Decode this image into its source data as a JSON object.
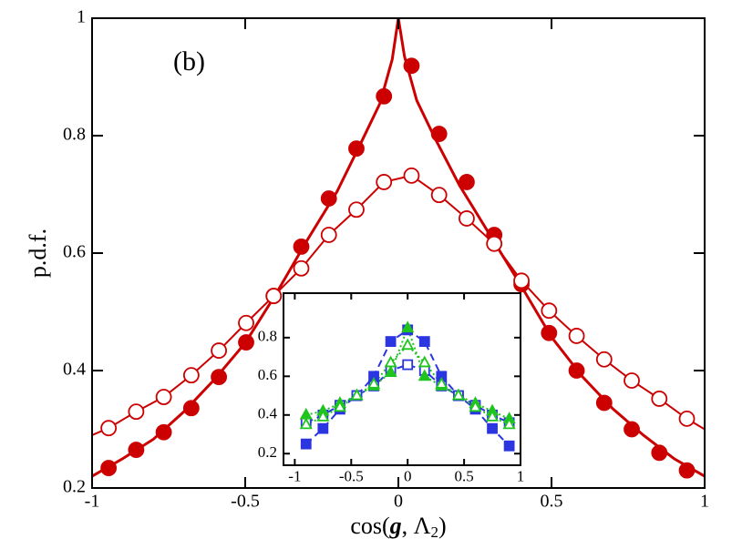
{
  "chart_data": [
    {
      "type": "line",
      "annotation": "(b)",
      "ylabel": "p.d.f.",
      "xlabel_parts": [
        "cos(",
        "g",
        ", Λ",
        "2",
        ")"
      ],
      "xlim": [
        -1,
        1
      ],
      "ylim": [
        0.2,
        1
      ],
      "xticks": [
        -1,
        -0.5,
        0,
        0.5,
        1
      ],
      "yticks": [
        0.2,
        0.4,
        0.6,
        0.8,
        1
      ],
      "series": [
        {
          "name": "filled",
          "color": "#cc0000",
          "marker": "circle",
          "filled": true,
          "line_width": 3,
          "x": [
            -0.946,
            -0.856,
            -0.766,
            -0.676,
            -0.586,
            -0.497,
            -0.407,
            -0.317,
            -0.227,
            -0.137,
            -0.047,
            0.043,
            0.133,
            0.223,
            0.313,
            0.402,
            0.492,
            0.582,
            0.672,
            0.762,
            0.852,
            0.942
          ],
          "values": [
            0.234,
            0.265,
            0.295,
            0.336,
            0.389,
            0.448,
            0.527,
            0.611,
            0.693,
            0.778,
            0.867,
            0.919,
            0.803,
            0.721,
            0.631,
            0.547,
            0.464,
            0.4,
            0.345,
            0.3,
            0.26,
            0.23
          ],
          "line_x": [
            -1,
            -0.9,
            -0.8,
            -0.7,
            -0.6,
            -0.5,
            -0.4,
            -0.3,
            -0.2,
            -0.12,
            -0.06,
            -0.02,
            0,
            0.02,
            0.06,
            0.12,
            0.2,
            0.3,
            0.4,
            0.5,
            0.6,
            0.7,
            0.8,
            0.9,
            1
          ],
          "line_values": [
            0.22,
            0.25,
            0.283,
            0.33,
            0.385,
            0.447,
            0.53,
            0.62,
            0.705,
            0.79,
            0.855,
            0.93,
            1,
            0.935,
            0.86,
            0.795,
            0.715,
            0.63,
            0.545,
            0.457,
            0.39,
            0.335,
            0.29,
            0.25,
            0.22
          ]
        },
        {
          "name": "open",
          "color": "#cc0000",
          "marker": "circle",
          "filled": false,
          "line_width": 2,
          "x": [
            -0.946,
            -0.856,
            -0.766,
            -0.676,
            -0.586,
            -0.497,
            -0.407,
            -0.317,
            -0.227,
            -0.137,
            -0.047,
            0.043,
            0.133,
            0.223,
            0.313,
            0.402,
            0.492,
            0.582,
            0.672,
            0.762,
            0.852,
            0.942
          ],
          "values": [
            0.302,
            0.33,
            0.355,
            0.392,
            0.434,
            0.481,
            0.527,
            0.574,
            0.631,
            0.674,
            0.721,
            0.732,
            0.699,
            0.659,
            0.616,
            0.553,
            0.502,
            0.459,
            0.419,
            0.383,
            0.352,
            0.318
          ],
          "line_x": [
            -1,
            -0.946,
            -0.856,
            -0.766,
            -0.676,
            -0.586,
            -0.497,
            -0.407,
            -0.317,
            -0.227,
            -0.137,
            -0.047,
            0.043,
            0.133,
            0.223,
            0.313,
            0.402,
            0.492,
            0.582,
            0.672,
            0.762,
            0.852,
            0.942,
            1
          ],
          "line_values": [
            0.29,
            0.302,
            0.33,
            0.355,
            0.392,
            0.434,
            0.481,
            0.527,
            0.574,
            0.631,
            0.674,
            0.721,
            0.732,
            0.699,
            0.659,
            0.616,
            0.553,
            0.502,
            0.459,
            0.419,
            0.383,
            0.352,
            0.318,
            0.3
          ]
        }
      ]
    },
    {
      "type": "line",
      "xlim": [
        -1.1,
        1
      ],
      "ylim": [
        0.14,
        1.03
      ],
      "xticks": [
        -1,
        -0.5,
        0,
        0.5,
        1
      ],
      "yticks": [
        0.2,
        0.4,
        0.6,
        0.8
      ],
      "series": [
        {
          "name": "blue-filled",
          "color": "#2b35e0",
          "marker": "square",
          "filled": true,
          "dash": "8,5",
          "x": [
            -0.9,
            -0.75,
            -0.6,
            -0.45,
            -0.3,
            -0.15,
            0,
            0.15,
            0.3,
            0.45,
            0.6,
            0.75,
            0.9
          ],
          "values": [
            0.25,
            0.33,
            0.43,
            0.5,
            0.6,
            0.78,
            0.84,
            0.78,
            0.6,
            0.5,
            0.43,
            0.33,
            0.24
          ]
        },
        {
          "name": "blue-open",
          "color": "#2b35e0",
          "marker": "square",
          "filled": false,
          "dash": "8,5",
          "x": [
            -0.9,
            -0.75,
            -0.6,
            -0.45,
            -0.3,
            -0.15,
            0,
            0.15,
            0.3,
            0.45,
            0.6,
            0.75,
            0.9
          ],
          "values": [
            0.36,
            0.4,
            0.45,
            0.5,
            0.55,
            0.63,
            0.66,
            0.63,
            0.55,
            0.5,
            0.45,
            0.4,
            0.36
          ]
        },
        {
          "name": "green-filled",
          "color": "#1fc41f",
          "marker": "triangle",
          "filled": true,
          "dash": "2,3",
          "x": [
            -0.9,
            -0.75,
            -0.6,
            -0.45,
            -0.3,
            -0.15,
            0,
            0.15,
            0.3,
            0.45,
            0.6,
            0.75,
            0.9
          ],
          "values": [
            0.4,
            0.42,
            0.46,
            0.5,
            0.55,
            0.62,
            0.85,
            0.6,
            0.55,
            0.5,
            0.46,
            0.42,
            0.38
          ]
        },
        {
          "name": "green-open",
          "color": "#1fc41f",
          "marker": "triangle",
          "filled": false,
          "dash": "2,3",
          "x": [
            -0.9,
            -0.75,
            -0.6,
            -0.45,
            -0.3,
            -0.15,
            0,
            0.15,
            0.3,
            0.45,
            0.6,
            0.75,
            0.9
          ],
          "values": [
            0.35,
            0.39,
            0.44,
            0.5,
            0.56,
            0.67,
            0.76,
            0.67,
            0.56,
            0.5,
            0.44,
            0.39,
            0.35
          ]
        }
      ]
    }
  ]
}
